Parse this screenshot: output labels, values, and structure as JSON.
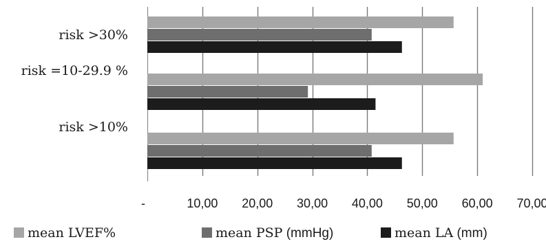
{
  "chart_data": {
    "type": "bar",
    "orientation": "horizontal",
    "categories": [
      "risk >30%",
      "risk =10-29.9 %",
      "risk >10%"
    ],
    "series": [
      {
        "name": "mean LVEF%",
        "color": "#a6a6a6",
        "values": [
          55.7,
          61.0,
          55.7
        ]
      },
      {
        "name": "mean PSP (mmHg)",
        "color": "#6e6e6e",
        "values": [
          40.8,
          29.2,
          40.8
        ]
      },
      {
        "name": "mean LA (mm)",
        "color": "#1c1c1c",
        "values": [
          46.3,
          41.5,
          46.3
        ]
      }
    ],
    "xlim": [
      0,
      70
    ],
    "x_ticks": [
      0,
      10,
      20,
      30,
      40,
      50,
      60,
      70
    ],
    "x_tick_labels": [
      "-",
      "10,00",
      "20,00",
      "30,00",
      "40,00",
      "50,00",
      "60,00",
      "70,00"
    ],
    "grid": "vertical",
    "legend_position": "bottom"
  }
}
